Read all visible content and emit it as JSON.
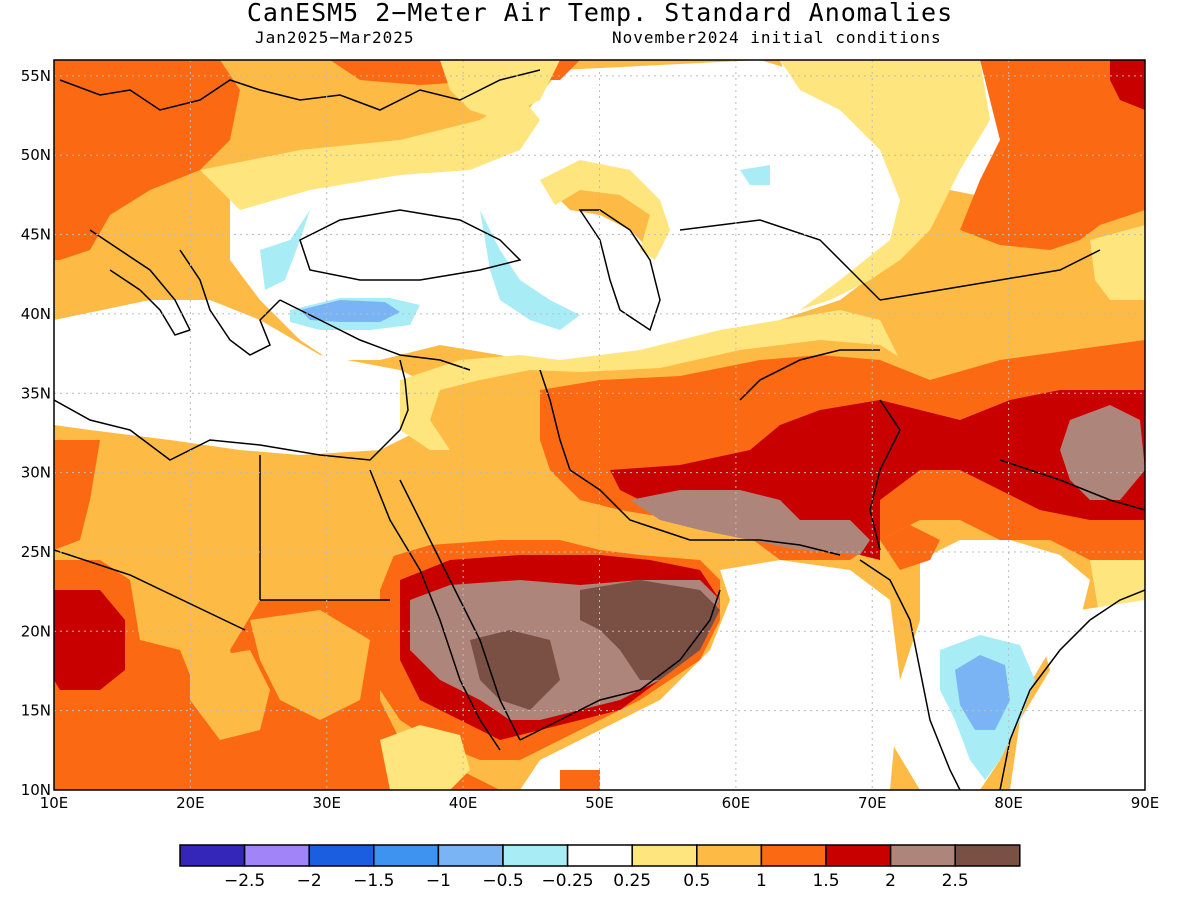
{
  "title": "CanESM5 2−Meter Air Temp. Standard Anomalies",
  "subtitle_left": "Jan2025−Mar2025",
  "subtitle_right": "November2024 initial conditions",
  "map": {
    "lon_range": [
      10,
      90
    ],
    "lat_range": [
      10,
      56
    ],
    "lat_ticks": [
      {
        "value": 55,
        "label": "55N"
      },
      {
        "value": 50,
        "label": "50N"
      },
      {
        "value": 45,
        "label": "45N"
      },
      {
        "value": 40,
        "label": "40N"
      },
      {
        "value": 35,
        "label": "35N"
      },
      {
        "value": 30,
        "label": "30N"
      },
      {
        "value": 25,
        "label": "25N"
      },
      {
        "value": 20,
        "label": "20N"
      },
      {
        "value": 15,
        "label": "15N"
      },
      {
        "value": 10,
        "label": "10N"
      }
    ],
    "lon_ticks": [
      {
        "value": 10,
        "label": "10E"
      },
      {
        "value": 20,
        "label": "20E"
      },
      {
        "value": 30,
        "label": "30E"
      },
      {
        "value": 40,
        "label": "40E"
      },
      {
        "value": 50,
        "label": "50E"
      },
      {
        "value": 60,
        "label": "60E"
      },
      {
        "value": 70,
        "label": "70E"
      },
      {
        "value": 80,
        "label": "80E"
      },
      {
        "value": 90,
        "label": "90E"
      }
    ],
    "grid": true,
    "fill_colors": {
      "lt_neg1": "#7ab4f5",
      "neg05_neg1": "#a8ecf6",
      "neutral": "#ffffff",
      "p025_05": "#ffe57e",
      "p05_1": "#fdbb45",
      "p1_15": "#fb6a13",
      "p15_2": "#c90000",
      "p2_25": "#ad857a",
      "gt25": "#7a5045"
    }
  },
  "legend": {
    "colors": [
      "#3326b8",
      "#a084f8",
      "#1b5fe0",
      "#3f93f0",
      "#7ab4f5",
      "#a8ecf6",
      "#ffffff",
      "#ffe57e",
      "#fdbb45",
      "#fb6a13",
      "#c90000",
      "#ad857a",
      "#7a5045"
    ],
    "labels": [
      "−2.5",
      "−2",
      "−1.5",
      "−1",
      "−0.5",
      "−0.25",
      "0.25",
      "0.5",
      "1",
      "1.5",
      "2",
      "2.5"
    ]
  }
}
